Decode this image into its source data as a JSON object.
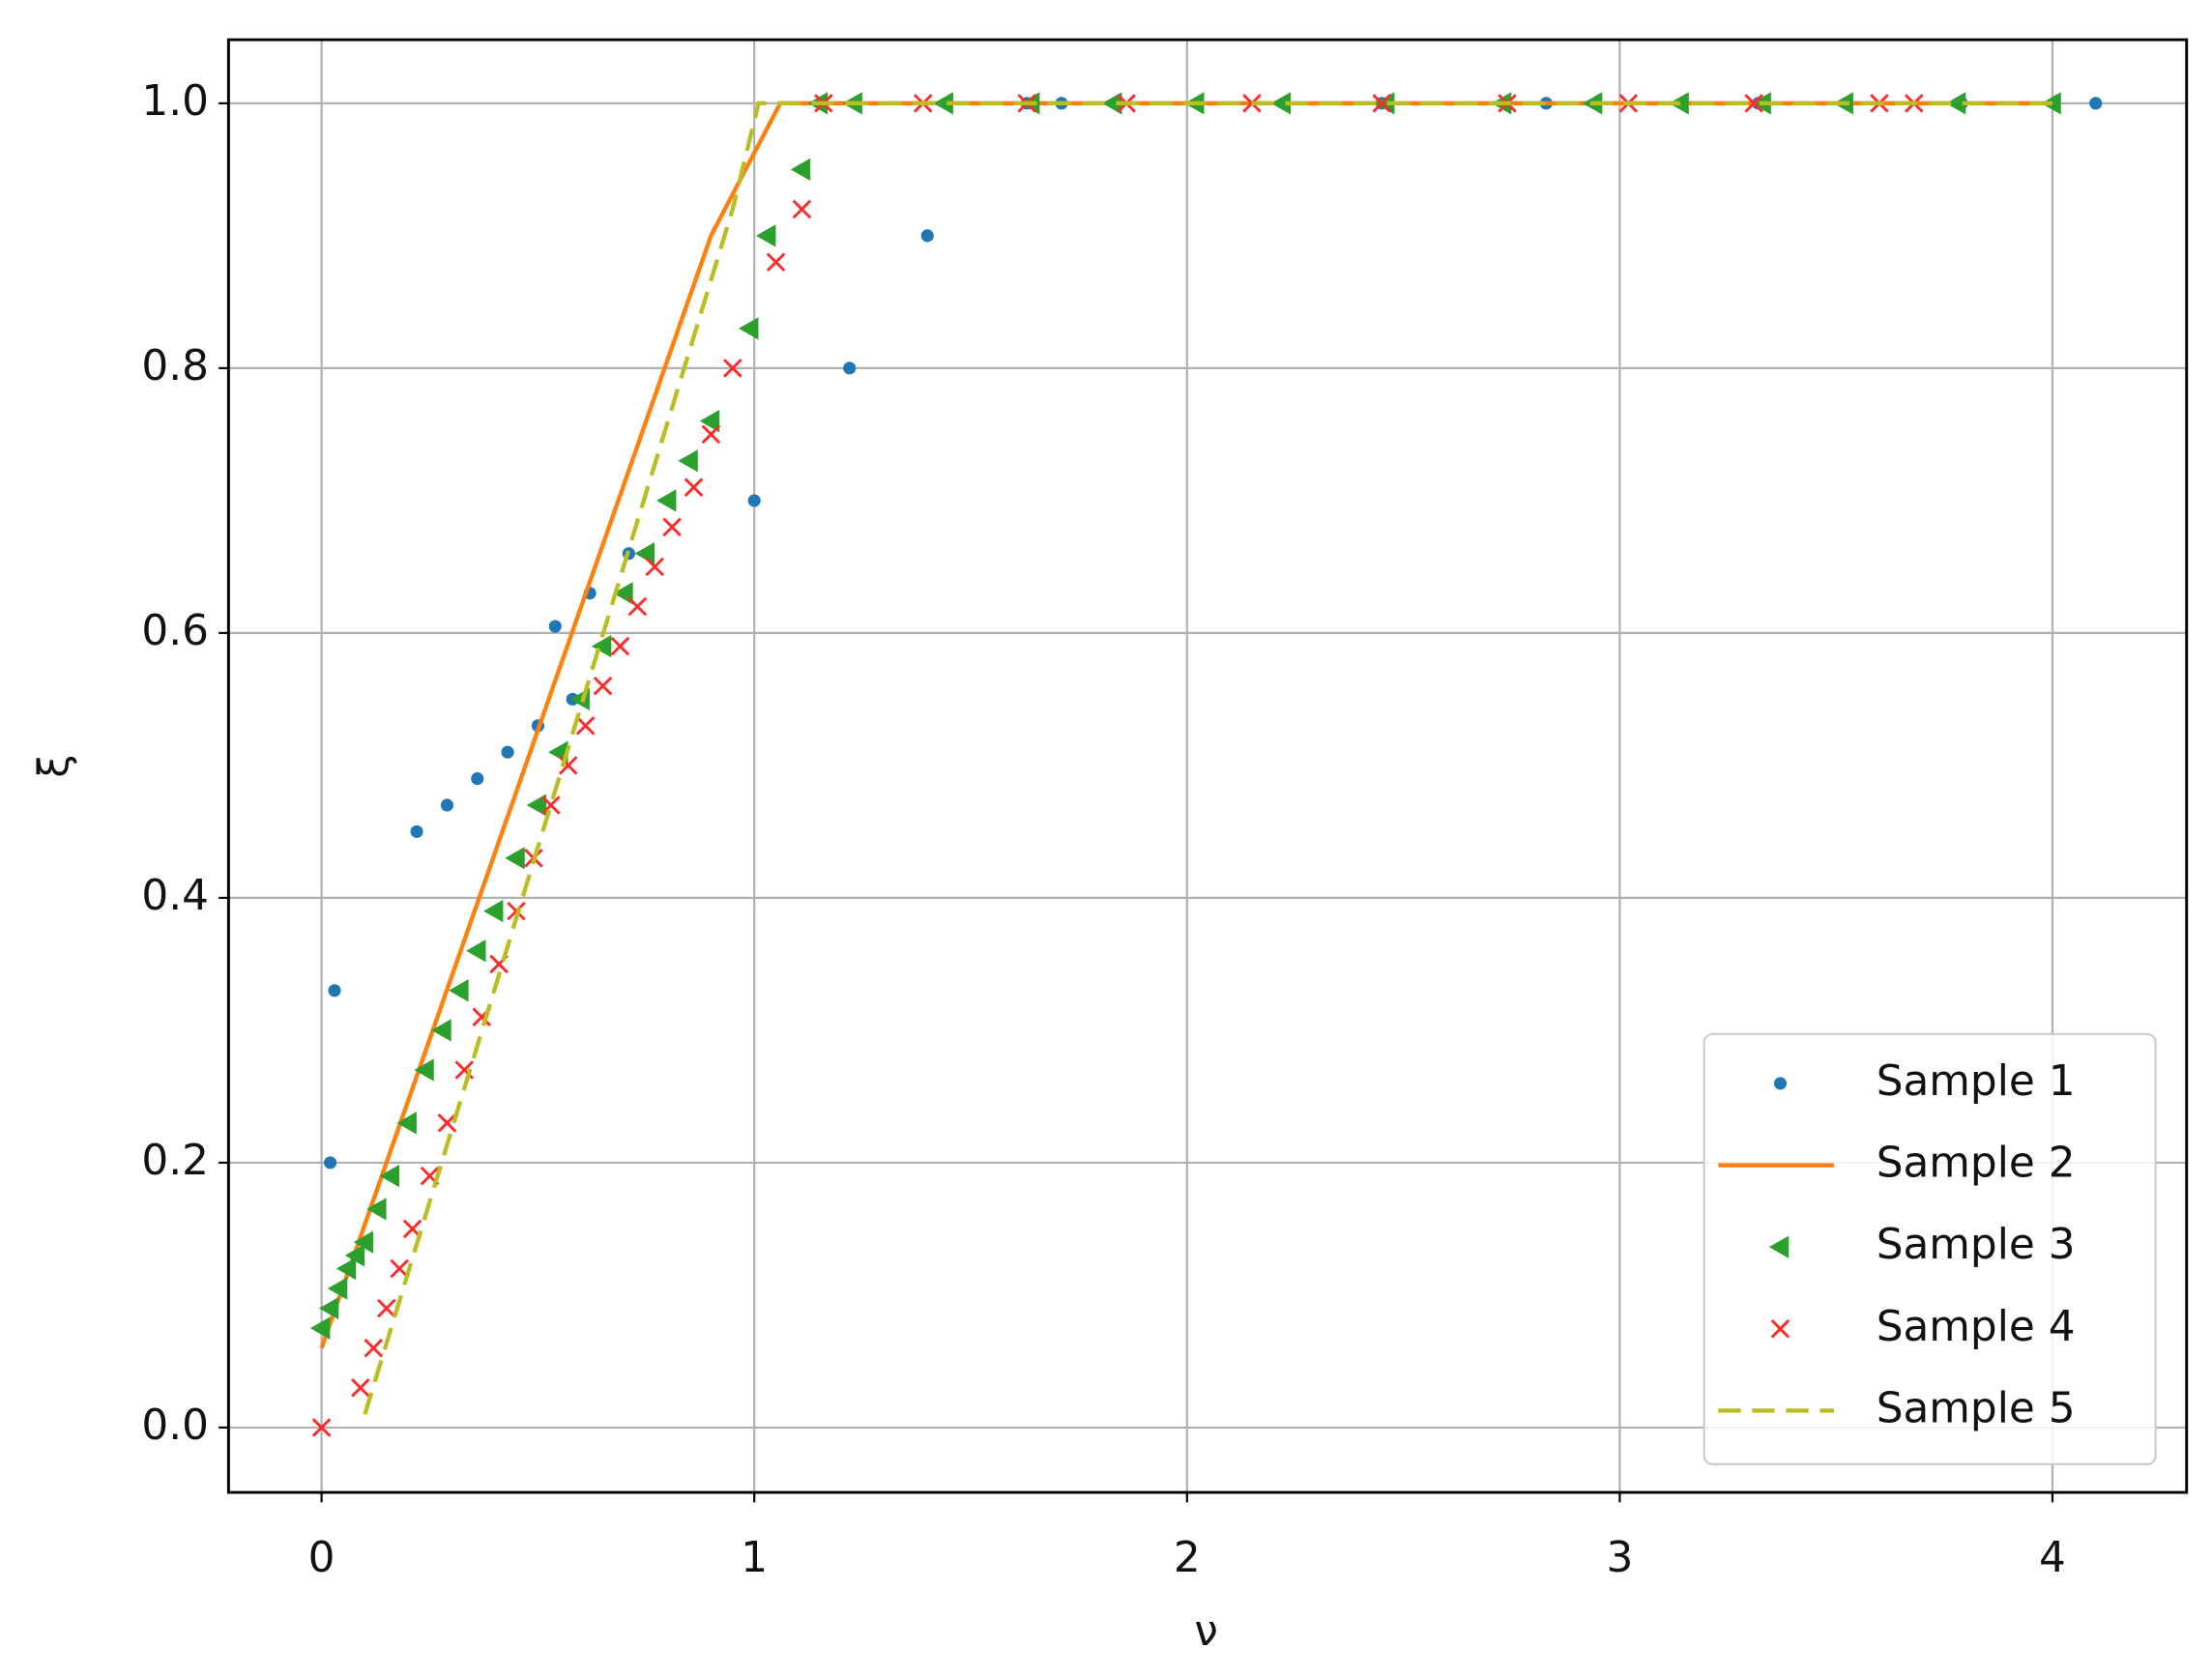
{
  "chart_data": {
    "type": "scatter",
    "xlabel": "ν",
    "ylabel": "ξ",
    "xlim": [
      -0.215,
      4.31
    ],
    "ylim": [
      -0.049,
      1.048
    ],
    "xticks": [
      0,
      1,
      2,
      3,
      4
    ],
    "yticks": [
      {
        "value": 0,
        "label": "0.0"
      },
      0.2,
      0.4,
      0.6,
      0.8,
      {
        "value": 1,
        "label": "1.0"
      }
    ],
    "grid": true,
    "legend": "lower right",
    "series": [
      {
        "name": "Sample 1",
        "color": "#1f77b4",
        "mode": "markers",
        "marker": "dot",
        "x": [
          0.02,
          0.03,
          0.22,
          0.29,
          0.36,
          0.43,
          0.5,
          0.54,
          0.58,
          0.62,
          0.71,
          1.0,
          1.22,
          1.4,
          1.63,
          1.71,
          1.84,
          2.45,
          2.83,
          3.32,
          3.79,
          4.1
        ],
        "values": [
          0.2,
          0.33,
          0.45,
          0.47,
          0.49,
          0.51,
          0.53,
          0.605,
          0.55,
          0.63,
          0.66,
          0.7,
          0.8,
          0.9,
          1,
          1,
          1,
          1,
          1,
          1,
          1,
          1
        ]
      },
      {
        "name": "Sample 2",
        "color": "#ff7f0e",
        "mode": "line",
        "linestyle": "solid",
        "x": [
          0,
          0.9,
          1.06,
          4.0
        ],
        "values": [
          0.06,
          0.9,
          1,
          1
        ]
      },
      {
        "name": "Sample 3",
        "color": "#2ca02c",
        "mode": "markers",
        "marker": "triangle-left",
        "x": [
          0,
          0.02,
          0.04,
          0.06,
          0.08,
          0.1,
          0.13,
          0.16,
          0.2,
          0.24,
          0.28,
          0.32,
          0.36,
          0.4,
          0.45,
          0.5,
          0.55,
          0.6,
          0.65,
          0.7,
          0.75,
          0.8,
          0.85,
          0.9,
          0.99,
          1.03,
          1.11,
          1.15,
          1.23,
          1.44,
          1.64,
          1.83,
          2.02,
          2.22,
          2.46,
          2.73,
          2.94,
          3.14,
          3.33,
          3.52,
          3.78,
          4.0
        ],
        "values": [
          0.075,
          0.09,
          0.105,
          0.12,
          0.13,
          0.14,
          0.165,
          0.19,
          0.23,
          0.27,
          0.3,
          0.33,
          0.36,
          0.39,
          0.43,
          0.47,
          0.51,
          0.55,
          0.59,
          0.63,
          0.66,
          0.7,
          0.73,
          0.76,
          0.83,
          0.9,
          0.95,
          1,
          1,
          1,
          1,
          1,
          1,
          1,
          1,
          1,
          1,
          1,
          1,
          1,
          1,
          1
        ]
      },
      {
        "name": "Sample 4",
        "color": "#ff2a2a",
        "mode": "markers",
        "marker": "x",
        "x": [
          0,
          0.09,
          0.12,
          0.15,
          0.18,
          0.21,
          0.25,
          0.29,
          0.33,
          0.37,
          0.41,
          0.45,
          0.49,
          0.53,
          0.57,
          0.61,
          0.65,
          0.69,
          0.73,
          0.77,
          0.81,
          0.86,
          0.9,
          0.95,
          1.05,
          1.11,
          1.16,
          1.39,
          1.63,
          1.86,
          2.15,
          2.45,
          2.74,
          3.02,
          3.31,
          3.6,
          3.68
        ],
        "values": [
          0,
          0.03,
          0.06,
          0.09,
          0.12,
          0.15,
          0.19,
          0.23,
          0.27,
          0.31,
          0.35,
          0.39,
          0.43,
          0.47,
          0.5,
          0.53,
          0.56,
          0.59,
          0.62,
          0.65,
          0.68,
          0.71,
          0.75,
          0.8,
          0.88,
          0.92,
          1,
          1,
          1,
          1,
          1,
          1,
          1,
          1,
          1,
          1,
          1
        ]
      },
      {
        "name": "Sample 5",
        "color": "#bcbd22",
        "mode": "line",
        "linestyle": "dashed",
        "x": [
          0.1,
          0.95,
          1.01,
          4.0
        ],
        "values": [
          0.01,
          0.92,
          1,
          1
        ]
      }
    ]
  }
}
